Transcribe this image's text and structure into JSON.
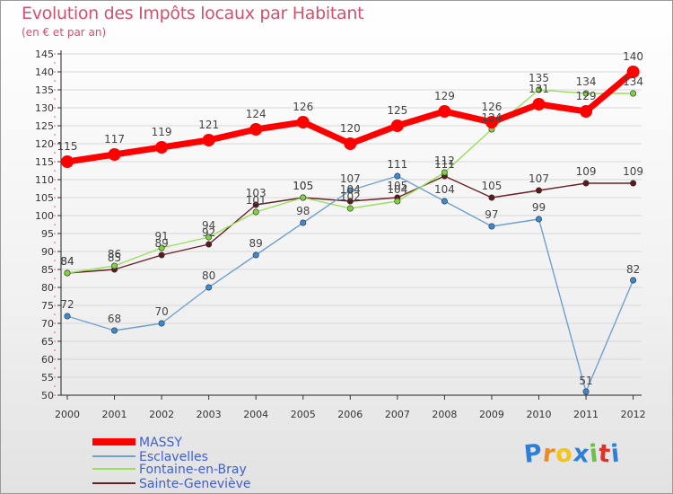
{
  "chart_data": {
    "type": "line",
    "title": "Evolution des Impôts locaux par Habitant",
    "subtitle": "(en € et par an)",
    "categories": [
      "2000",
      "2001",
      "2002",
      "2003",
      "2004",
      "2005",
      "2006",
      "2007",
      "2008",
      "2009",
      "2010",
      "2011",
      "2012"
    ],
    "ylim": [
      50,
      145
    ],
    "yticks": [
      50,
      55,
      60,
      65,
      70,
      75,
      80,
      85,
      90,
      95,
      100,
      105,
      110,
      115,
      120,
      125,
      130,
      135,
      140,
      145
    ],
    "series": [
      {
        "name": "MASSY",
        "color": "#ff0000",
        "values": [
          115,
          117,
          119,
          121,
          124,
          126,
          120,
          125,
          129,
          126,
          131,
          129,
          140
        ]
      },
      {
        "name": "Esclavelles",
        "color": "#6ea0d0",
        "marker": "#3a8ad0",
        "values": [
          72,
          68,
          70,
          80,
          89,
          98,
          107,
          111,
          104,
          97,
          99,
          51,
          82
        ]
      },
      {
        "name": "Fontaine-en-Bray",
        "color": "#99e05a",
        "marker": "#7ed23e",
        "values": [
          84,
          86,
          91,
          94,
          101,
          105,
          102,
          104,
          112,
          124,
          135,
          134,
          134
        ]
      },
      {
        "name": "Sainte-Geneviève",
        "color": "#6b1f24",
        "marker": "#5a1a1e",
        "values": [
          84,
          85,
          89,
          92,
          103,
          105,
          104,
          105,
          111,
          105,
          107,
          109,
          109
        ]
      }
    ]
  },
  "logo": {
    "text": "Proxiti",
    "colors": [
      "#2e7fd8",
      "#f08a1e",
      "#f4c518",
      "#2e7fd8",
      "#6cc04a",
      "#e0322a",
      "#2e7fd8"
    ]
  }
}
